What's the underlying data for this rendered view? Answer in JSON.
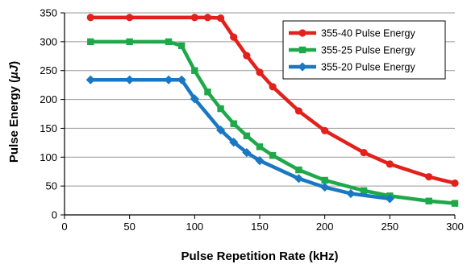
{
  "chart_data": {
    "type": "line",
    "xlabel": "Pulse Repetition Rate (kHz)",
    "ylabel_prefix": "Pulse Energy (",
    "ylabel_unit": "µJ",
    "ylabel_suffix": ")",
    "xlim": [
      0,
      300
    ],
    "ylim": [
      0,
      350
    ],
    "xticks": [
      "0",
      "50",
      "100",
      "150",
      "200",
      "250",
      "300"
    ],
    "yticks": [
      "0",
      "50",
      "100",
      "150",
      "200",
      "250",
      "300",
      "350"
    ],
    "grid": "horizontal",
    "legend_position": "top-right",
    "series": [
      {
        "name": "355-40 Pulse Energy",
        "color": "#e2211c",
        "marker": "circle",
        "x": [
          20,
          50,
          100,
          110,
          120,
          130,
          140,
          150,
          160,
          180,
          200,
          230,
          250,
          280,
          300
        ],
        "y": [
          342,
          342,
          342,
          342,
          341,
          308,
          276,
          247,
          222,
          180,
          146,
          108,
          88,
          66,
          55
        ]
      },
      {
        "name": "355-25 Pulse Energy",
        "color": "#1fa84a",
        "marker": "square",
        "x": [
          20,
          50,
          80,
          90,
          100,
          110,
          120,
          130,
          140,
          150,
          160,
          180,
          200,
          230,
          250,
          280,
          300
        ],
        "y": [
          300,
          300,
          300,
          293,
          250,
          213,
          184,
          158,
          137,
          118,
          103,
          78,
          60,
          42,
          33,
          24,
          20
        ]
      },
      {
        "name": "355-20 Pulse Energy",
        "color": "#1a78c2",
        "marker": "diamond",
        "x": [
          20,
          50,
          80,
          90,
          100,
          120,
          130,
          140,
          150,
          180,
          200,
          220,
          250
        ],
        "y": [
          234,
          234,
          234,
          234,
          201,
          147,
          126,
          108,
          94,
          63,
          48,
          37,
          28
        ]
      }
    ]
  }
}
